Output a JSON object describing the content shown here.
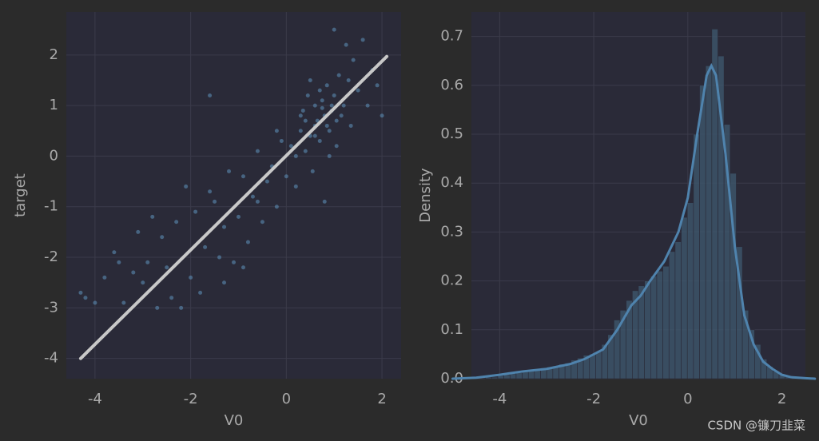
{
  "chart_data": [
    {
      "type": "scatter",
      "xlabel": "V0",
      "ylabel": "target",
      "xlim": [
        -4.6,
        2.4
      ],
      "ylim": [
        -4.4,
        2.85
      ],
      "xticks": [
        -4,
        -2,
        0,
        2
      ],
      "yticks": [
        -4,
        -3,
        -2,
        -1,
        0,
        1,
        2
      ],
      "grid": true,
      "color": "#5f93bd",
      "x": [
        -4.3,
        -4.2,
        -4.0,
        -3.8,
        -3.6,
        -3.5,
        -3.4,
        -3.2,
        -3.1,
        -3.0,
        -2.9,
        -2.8,
        -2.7,
        -2.6,
        -2.5,
        -2.4,
        -2.3,
        -2.2,
        -2.1,
        -2.0,
        -1.9,
        -1.8,
        -1.7,
        -1.6,
        -1.5,
        -1.4,
        -1.3,
        -1.2,
        -1.1,
        -1.0,
        -0.9,
        -0.8,
        -0.7,
        -0.6,
        -0.5,
        -0.4,
        -0.3,
        -0.2,
        -0.1,
        0.0,
        0.1,
        0.2,
        0.3,
        0.35,
        0.4,
        0.45,
        0.5,
        0.55,
        0.6,
        0.65,
        0.7,
        0.75,
        0.8,
        0.85,
        0.9,
        0.95,
        1.0,
        1.05,
        1.1,
        1.15,
        1.2,
        1.25,
        1.3,
        1.35,
        1.4,
        1.5,
        1.6,
        1.7,
        1.8,
        1.9,
        2.0,
        0.6,
        0.7,
        0.8,
        0.5,
        0.9,
        1.0,
        0.3,
        -0.2,
        -0.6,
        -0.9,
        -1.3,
        -1.6,
        0.4,
        0.6,
        0.75,
        0.85,
        0.95,
        1.05,
        0.2
      ],
      "values": [
        -2.7,
        -2.8,
        -2.9,
        -2.4,
        -1.9,
        -2.1,
        -2.9,
        -2.3,
        -1.5,
        -2.5,
        -2.1,
        -1.2,
        -3.0,
        -1.6,
        -2.2,
        -2.8,
        -1.3,
        -3.0,
        -0.6,
        -2.4,
        -1.1,
        -2.7,
        -1.8,
        1.2,
        -0.9,
        -2.0,
        -1.4,
        -0.3,
        -2.1,
        -1.2,
        -0.4,
        -1.7,
        -0.8,
        0.1,
        -1.3,
        -0.5,
        -0.2,
        -1.0,
        0.3,
        -0.4,
        0.2,
        -0.6,
        0.5,
        0.9,
        0.1,
        1.2,
        0.4,
        -0.3,
        1.0,
        0.7,
        0.3,
        1.1,
        0.8,
        1.4,
        0.5,
        0.9,
        1.2,
        0.2,
        1.6,
        0.8,
        1.0,
        2.2,
        1.5,
        0.6,
        1.9,
        1.3,
        2.3,
        1.0,
        1.7,
        1.4,
        0.8,
        0.6,
        1.3,
        -0.9,
        1.5,
        0.0,
        2.5,
        0.8,
        0.5,
        -0.9,
        -2.2,
        -2.5,
        -0.7,
        0.7,
        0.4,
        0.95,
        0.6,
        1.0,
        0.7,
        0.0
      ],
      "line": {
        "color": "#c8c8c8",
        "x": [
          -4.3,
          2.1
        ],
        "values": [
          -4.0,
          1.97
        ]
      }
    },
    {
      "type": "histogram",
      "xlabel": "V0",
      "ylabel": "Density",
      "xlim": [
        -4.6,
        2.5
      ],
      "ylim": [
        0,
        0.75
      ],
      "xticks": [
        -4,
        -2,
        0,
        2
      ],
      "yticks": [
        {
          "value": 0,
          "label": "0.0"
        },
        0.1,
        0.2,
        0.3,
        0.4,
        0.5,
        0.6,
        0.7
      ],
      "grid": true,
      "color": "#3d566c",
      "bins": [
        -4.3,
        -4.17,
        -4.04,
        -3.91,
        -3.78,
        -3.65,
        -3.52,
        -3.39,
        -3.26,
        -3.13,
        -3.0,
        -2.87,
        -2.74,
        -2.61,
        -2.48,
        -2.35,
        -2.22,
        -2.09,
        -1.96,
        -1.83,
        -1.7,
        -1.57,
        -1.44,
        -1.31,
        -1.18,
        -1.05,
        -0.92,
        -0.79,
        -0.66,
        -0.53,
        -0.4,
        -0.27,
        -0.14,
        -0.01,
        0.12,
        0.25,
        0.38,
        0.51,
        0.64,
        0.77,
        0.9,
        1.03,
        1.16,
        1.29,
        1.42,
        1.55,
        1.68,
        1.81,
        1.94,
        2.07,
        2.2
      ],
      "values": [
        0.003,
        0.003,
        0.006,
        0.008,
        0.01,
        0.012,
        0.015,
        0.018,
        0.02,
        0.022,
        0.024,
        0.026,
        0.03,
        0.032,
        0.038,
        0.042,
        0.048,
        0.05,
        0.055,
        0.07,
        0.09,
        0.12,
        0.14,
        0.16,
        0.18,
        0.19,
        0.2,
        0.21,
        0.22,
        0.23,
        0.26,
        0.28,
        0.33,
        0.36,
        0.5,
        0.6,
        0.64,
        0.715,
        0.66,
        0.52,
        0.42,
        0.27,
        0.14,
        0.1,
        0.07,
        0.04,
        0.025,
        0.015,
        0.008,
        0.004
      ],
      "line": {
        "color": "#4f83ad",
        "x": [
          -5,
          -4.5,
          -4,
          -3.5,
          -3,
          -2.5,
          -2.2,
          -2,
          -1.8,
          -1.5,
          -1.2,
          -1,
          -0.8,
          -0.5,
          -0.2,
          0,
          0.2,
          0.4,
          0.5,
          0.6,
          0.8,
          1,
          1.2,
          1.4,
          1.6,
          1.8,
          2,
          2.2,
          2.5,
          2.7
        ],
        "values": [
          0,
          0.002,
          0.008,
          0.015,
          0.02,
          0.03,
          0.04,
          0.05,
          0.06,
          0.1,
          0.15,
          0.17,
          0.2,
          0.24,
          0.3,
          0.37,
          0.5,
          0.62,
          0.64,
          0.62,
          0.46,
          0.27,
          0.13,
          0.07,
          0.035,
          0.02,
          0.008,
          0.003,
          0.001,
          0
        ]
      }
    }
  ],
  "watermark": "CSDN @镰刀韭菜"
}
